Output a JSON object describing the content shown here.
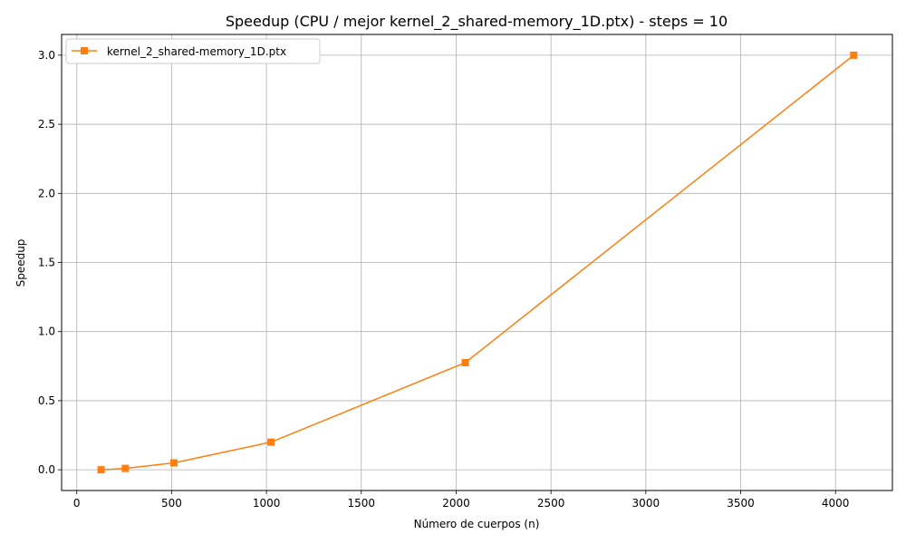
{
  "chart_data": {
    "type": "line",
    "title": "Speedup (CPU / mejor kernel_2_shared-memory_1D.ptx) - steps = 10",
    "xlabel": "Número de cuerpos (n)",
    "ylabel": "Speedup",
    "xlim": [
      -80,
      4300
    ],
    "ylim": [
      -0.15,
      3.15
    ],
    "xticks": [
      0,
      500,
      1000,
      1500,
      2000,
      2500,
      3000,
      3500,
      4000
    ],
    "yticks": [
      0.0,
      0.5,
      1.0,
      1.5,
      2.0,
      2.5,
      3.0
    ],
    "ytick_labels": [
      "0.0",
      "0.5",
      "1.0",
      "1.5",
      "2.0",
      "2.5",
      "3.0"
    ],
    "grid": true,
    "legend_position": "top-left",
    "series": [
      {
        "name": "kernel_2_shared-memory_1D.ptx",
        "color": "#ff7f0e",
        "marker": "square",
        "x": [
          128,
          256,
          512,
          1024,
          2048,
          4096
        ],
        "y": [
          0.0,
          0.01,
          0.05,
          0.2,
          0.775,
          3.0
        ]
      }
    ]
  }
}
